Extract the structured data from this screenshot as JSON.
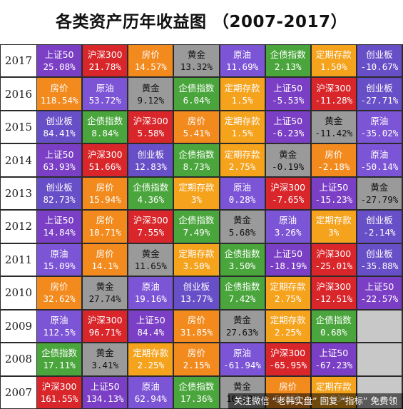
{
  "title": "各类资产历年收益图 （2007-2017）",
  "colors": {
    "上证50": "#7b3fc6",
    "沪深300": "#d9262b",
    "房价": "#f28a1e",
    "黄金": "#9a9a9a",
    "原油": "#7c54d6",
    "债指数": "#4aa63c",
    "定期存款": "#f5a21c",
    "创业板": "#6750c7",
    "empty": "#c8c8c8"
  },
  "chart_data": {
    "type": "table",
    "title": "各类资产历年收益图 （2007-2017）",
    "years": [
      "2017",
      "2016",
      "2015",
      "2014",
      "2013",
      "2012",
      "2011",
      "2010",
      "2009",
      "2008",
      "2007"
    ],
    "rows": [
      [
        [
          "上证50",
          "25.08%"
        ],
        [
          "沪深300",
          "21.78%"
        ],
        [
          "房价",
          "14.57%"
        ],
        [
          "黄金",
          "13.32%"
        ],
        [
          "原油",
          "11.69%"
        ],
        [
          "企债指数",
          "2.13%"
        ],
        [
          "定期存款",
          "1.50%"
        ],
        [
          "创业板",
          "-10.67%"
        ]
      ],
      [
        [
          "房价",
          "118.54%"
        ],
        [
          "原油",
          "53.72%"
        ],
        [
          "黄金",
          "9.12%"
        ],
        [
          "企债指数",
          "6.04%"
        ],
        [
          "定期存款",
          "1.5%"
        ],
        [
          "上证50",
          "-5.53%"
        ],
        [
          "沪深300",
          "-11.28%"
        ],
        [
          "创业板",
          "-27.71%"
        ]
      ],
      [
        [
          "创业板",
          "84.41%"
        ],
        [
          "企债指数",
          "8.84%"
        ],
        [
          "沪深300",
          "5.58%"
        ],
        [
          "房价",
          "5.41%"
        ],
        [
          "定期存款",
          "1.5%"
        ],
        [
          "上证50",
          "-6.23%"
        ],
        [
          "黄金",
          "-11.42%"
        ],
        [
          "原油",
          "-35.02%"
        ]
      ],
      [
        [
          "上证50",
          "63.93%"
        ],
        [
          "沪深300",
          "51.66%"
        ],
        [
          "创业板",
          "12.83%"
        ],
        [
          "企债指数",
          "8.73%"
        ],
        [
          "定期存款",
          "2.75%"
        ],
        [
          "黄金",
          "-0.19%"
        ],
        [
          "房价",
          "-2.18%"
        ],
        [
          "原油",
          "-50.14%"
        ]
      ],
      [
        [
          "创业板",
          "82.73%"
        ],
        [
          "房价",
          "15.94%"
        ],
        [
          "企债指数",
          "4.36%"
        ],
        [
          "定期存款",
          "3%"
        ],
        [
          "原油",
          "0.28%"
        ],
        [
          "沪深300",
          "-7.65%"
        ],
        [
          "上证50",
          "-15.23%"
        ],
        [
          "黄金",
          "-27.79%"
        ]
      ],
      [
        [
          "上证50",
          "14.84%"
        ],
        [
          "房价",
          "10.71%"
        ],
        [
          "沪深300",
          "7.55%"
        ],
        [
          "企债指数",
          "7.49%"
        ],
        [
          "黄金",
          "5.68%"
        ],
        [
          "原油",
          "3.26%"
        ],
        [
          "定期存款",
          "3%"
        ],
        [
          "创业板",
          "-2.14%"
        ]
      ],
      [
        [
          "原油",
          "15.09%"
        ],
        [
          "房价",
          "14.1%"
        ],
        [
          "黄金",
          "11.65%"
        ],
        [
          "定期存款",
          "3.50%"
        ],
        [
          "企债指数",
          "3.50%"
        ],
        [
          "上证50",
          "-18.19%"
        ],
        [
          "沪深300",
          "-25.01%"
        ],
        [
          "创业板",
          "-35.88%"
        ]
      ],
      [
        [
          "房价",
          "32.62%"
        ],
        [
          "黄金",
          "27.74%"
        ],
        [
          "原油",
          "19.16%"
        ],
        [
          "创业板",
          "13.77%"
        ],
        [
          "企债指数",
          "7.42%"
        ],
        [
          "定期存款",
          "2.75%"
        ],
        [
          "沪深300",
          "-12.51%"
        ],
        [
          "上证50",
          "-22.57%"
        ]
      ],
      [
        [
          "原油",
          "112.5%"
        ],
        [
          "沪深300",
          "96.71%"
        ],
        [
          "上证50",
          "84.4%"
        ],
        [
          "房价",
          "31.85%"
        ],
        [
          "黄金",
          "27.63%"
        ],
        [
          "定期存款",
          "2.25%"
        ],
        [
          "企债指数",
          "0.68%"
        ],
        null
      ],
      [
        [
          "企债指数",
          "17.11%"
        ],
        [
          "黄金",
          "3.41%"
        ],
        [
          "定期存款",
          "2.25%"
        ],
        [
          "房价",
          "2.15%"
        ],
        [
          "原油",
          "-61.94%"
        ],
        [
          "沪深300",
          "-65.95%"
        ],
        [
          "上证50",
          "-67.23%"
        ],
        null
      ],
      [
        [
          "沪深300",
          "161.55%"
        ],
        [
          "上证50",
          "134.13%"
        ],
        [
          "原油",
          "62.94%"
        ],
        [
          "企债指数",
          "17.36%"
        ],
        [
          "黄金",
          "16.12%"
        ],
        [
          "房价",
          "5.35%"
        ],
        [
          "定期存款",
          "3.33%"
        ],
        null
      ]
    ]
  },
  "watermark": "关注微信 “老韩实盘” 回复 “指标” 免费领"
}
